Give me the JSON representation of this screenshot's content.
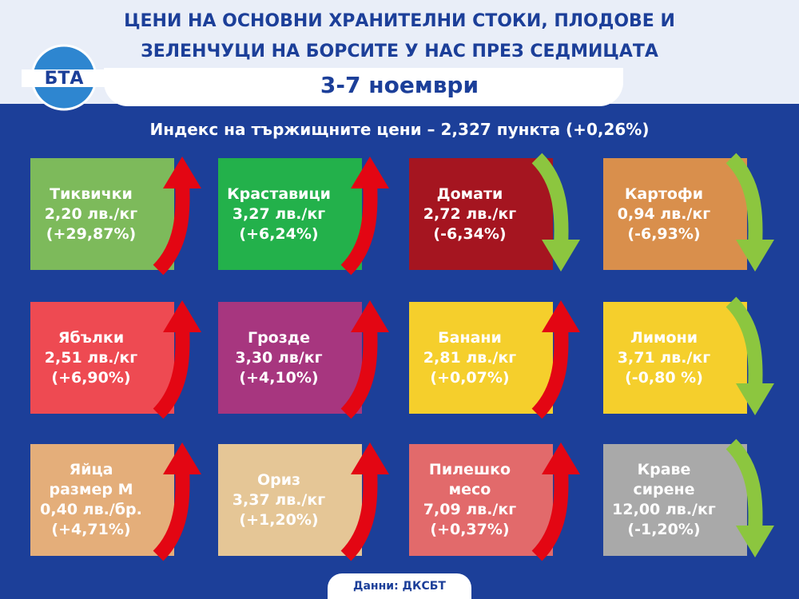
{
  "header": {
    "logo": "БТА",
    "title_lines": [
      "ЦЕНИ НА ОСНОВНИ ХРАНИТЕЛНИ СТОКИ, ПЛОДОВЕ И",
      "ЗЕЛЕНЧУЦИ НА БОРСИТЕ У НАС ПРЕЗ СЕДМИЦАТА"
    ],
    "date": "3-7 ноември",
    "index": "Индекс на тържищните цени – 2,327 пункта (+0,26%)"
  },
  "tiles": [
    {
      "name": [
        "Тиквички"
      ],
      "price": "2,20 лв./кг",
      "change": "(+29,87%)",
      "color": "#7dba5b",
      "arrow": "up"
    },
    {
      "name": [
        "Краставици"
      ],
      "price": "3,27 лв./кг",
      "change": "(+6,24%)",
      "color": "#23b14b",
      "arrow": "up"
    },
    {
      "name": [
        "Домати"
      ],
      "price": "2,72 лв./кг",
      "change": "(-6,34%)",
      "color": "#a51520",
      "arrow": "down"
    },
    {
      "name": [
        "Картофи"
      ],
      "price": "0,94 лв./кг",
      "change": "(-6,93%)",
      "color": "#d98f4c",
      "arrow": "down"
    },
    {
      "name": [
        "Ябълки"
      ],
      "price": "2,51 лв./кг",
      "change": "(+6,90%)",
      "color": "#ee4a52",
      "arrow": "up"
    },
    {
      "name": [
        "Грозде"
      ],
      "price": "3,30 лв/кг",
      "change": "(+4,10%)",
      "color": "#a7367f",
      "arrow": "up"
    },
    {
      "name": [
        "Банани"
      ],
      "price": "2,81 лв./кг",
      "change": "(+0,07%)",
      "color": "#f5cf2c",
      "arrow": "up"
    },
    {
      "name": [
        "Лимони"
      ],
      "price": "3,71 лв./кг",
      "change": "(-0,80 %)",
      "color": "#f5cf2c",
      "arrow": "down"
    },
    {
      "name": [
        "Яйца",
        "размер М"
      ],
      "price": "0,40 лв./бр.",
      "change": "(+4,71%)",
      "color": "#e4ae7a",
      "arrow": "up"
    },
    {
      "name": [
        "Ориз"
      ],
      "price": "3,37 лв./кг",
      "change": "(+1,20%)",
      "color": "#e5c696",
      "arrow": "up"
    },
    {
      "name": [
        "Пилешко",
        "месо"
      ],
      "price": "7,09 лв./кг",
      "change": "(+0,37%)",
      "color": "#e26a6b",
      "arrow": "up"
    },
    {
      "name": [
        "Краве",
        "сирене"
      ],
      "price": "12,00 лв./кг",
      "change": "(-1,20%)",
      "color": "#a9a9a9",
      "arrow": "down"
    }
  ],
  "footer": {
    "source": "Данни: ДКСБТ"
  }
}
